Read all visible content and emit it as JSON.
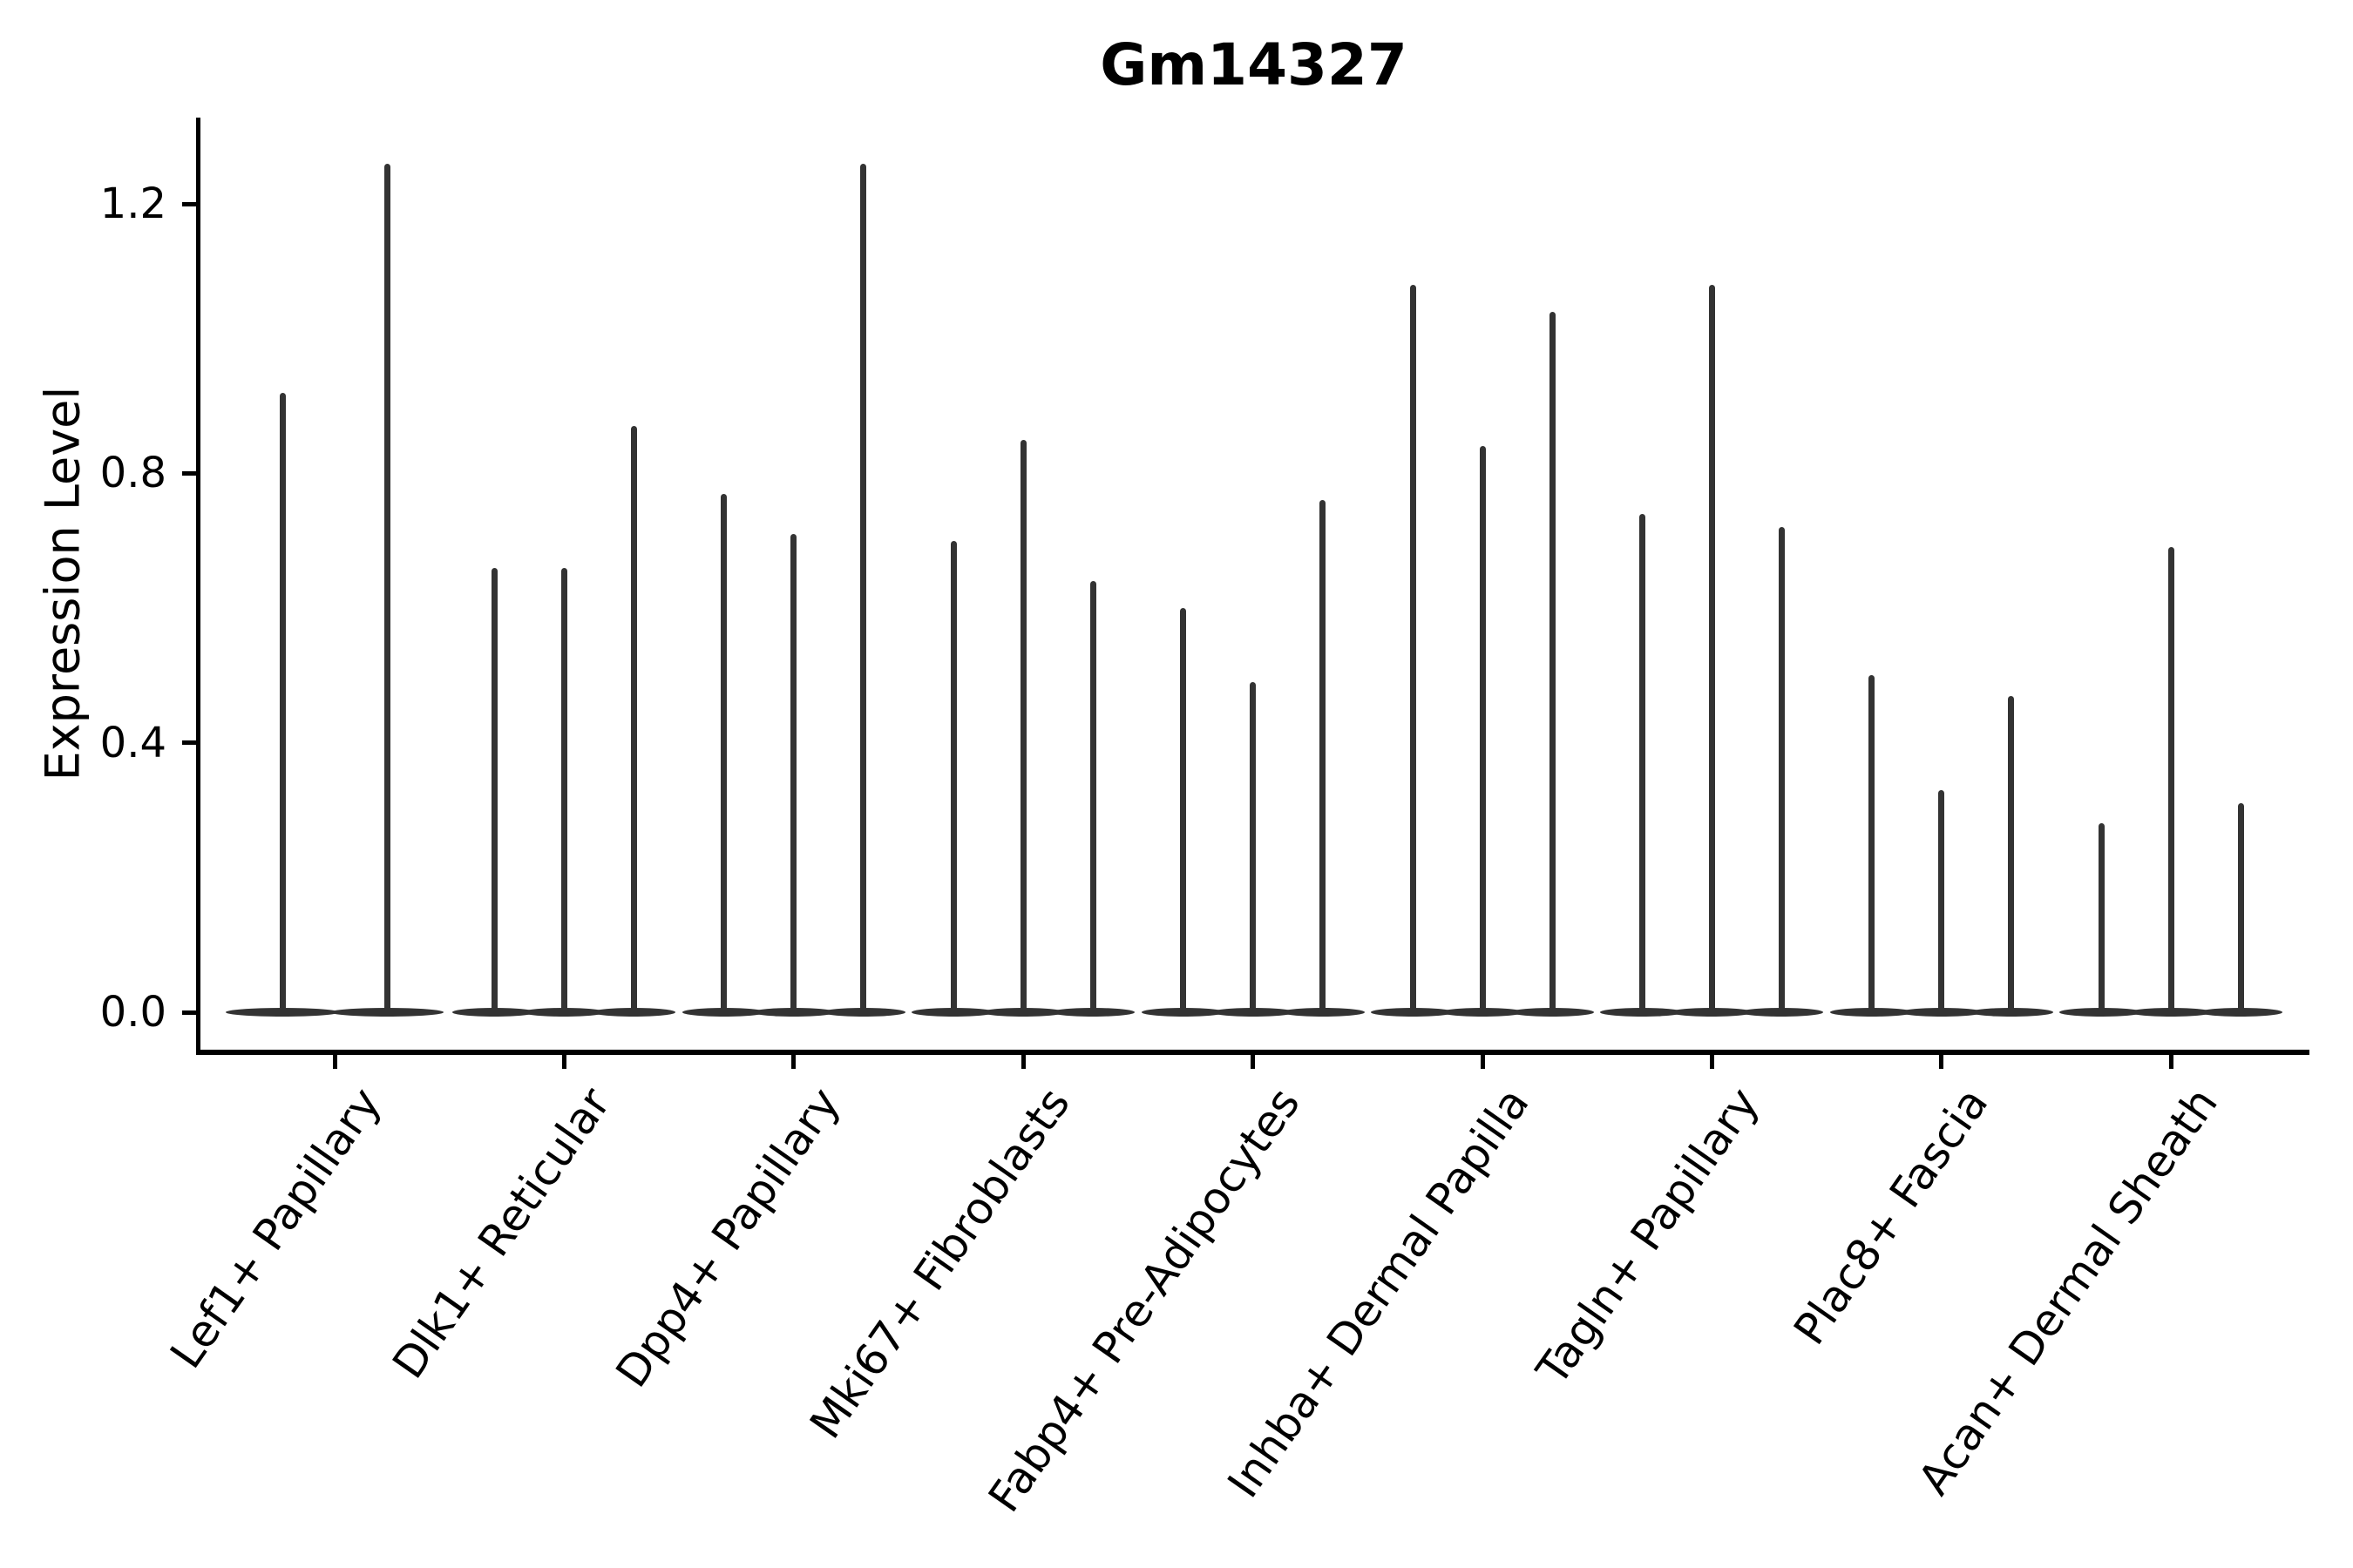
{
  "title": "Gm14327",
  "chart_data": {
    "type": "violin",
    "title": "Gm14327",
    "xlabel": "",
    "ylabel": "Expression Level",
    "ytick_labels": [
      "0.0",
      "0.4",
      "0.8",
      "1.2"
    ],
    "ytick_values": [
      0.0,
      0.4,
      0.8,
      1.2
    ],
    "ylim": [
      -0.06,
      1.33
    ],
    "grid": "off",
    "legend": "none",
    "background_color": "#ffffff",
    "violin_fill_color": "#333333",
    "axis_color": "#000000",
    "distribution_shape": "bulk of density flat at 0 with a thin spike tail up to max expression",
    "categories": [
      "Lef1+ Papillary",
      "Dlk1+ Reticular",
      "Dpp4+ Papillary",
      "Mki67+ Fibroblasts",
      "Fabp4+ Pre-Adipocytes",
      "Inhba+ Dermal Papilla",
      "Tagln+ Papillary",
      "Plac8+ Fascia",
      "Acan+ Dermal Sheath"
    ],
    "groups": [
      {
        "category": "Lef1+ Papillary",
        "sub_violins": [
          {
            "dx": -60,
            "max_expression": 0.92
          },
          {
            "dx": 60,
            "max_expression": 1.26
          }
        ]
      },
      {
        "category": "Dlk1+ Reticular",
        "sub_violins": [
          {
            "dx": -80,
            "max_expression": 0.66
          },
          {
            "dx": 0,
            "max_expression": 0.66
          },
          {
            "dx": 80,
            "max_expression": 0.87
          }
        ]
      },
      {
        "category": "Dpp4+ Papillary",
        "sub_violins": [
          {
            "dx": -80,
            "max_expression": 0.77
          },
          {
            "dx": 0,
            "max_expression": 0.71
          },
          {
            "dx": 80,
            "max_expression": 1.26
          }
        ]
      },
      {
        "category": "Mki67+ Fibroblasts",
        "sub_violins": [
          {
            "dx": -80,
            "max_expression": 0.7
          },
          {
            "dx": 0,
            "max_expression": 0.85
          },
          {
            "dx": 80,
            "max_expression": 0.64
          }
        ]
      },
      {
        "category": "Fabp4+ Pre-Adipocytes",
        "sub_violins": [
          {
            "dx": -80,
            "max_expression": 0.6
          },
          {
            "dx": 0,
            "max_expression": 0.49
          },
          {
            "dx": 80,
            "max_expression": 0.76
          }
        ]
      },
      {
        "category": "Inhba+ Dermal Papilla",
        "sub_violins": [
          {
            "dx": -80,
            "max_expression": 1.08
          },
          {
            "dx": 0,
            "max_expression": 0.84
          },
          {
            "dx": 80,
            "max_expression": 1.04
          }
        ]
      },
      {
        "category": "Tagln+ Papillary",
        "sub_violins": [
          {
            "dx": -80,
            "max_expression": 0.74
          },
          {
            "dx": 0,
            "max_expression": 1.08
          },
          {
            "dx": 80,
            "max_expression": 0.72
          }
        ]
      },
      {
        "category": "Plac8+ Fascia",
        "sub_violins": [
          {
            "dx": -80,
            "max_expression": 0.5
          },
          {
            "dx": 0,
            "max_expression": 0.33
          },
          {
            "dx": 80,
            "max_expression": 0.47
          }
        ]
      },
      {
        "category": "Acan+ Dermal Sheath",
        "sub_violins": [
          {
            "dx": -80,
            "max_expression": 0.28
          },
          {
            "dx": 0,
            "max_expression": 0.69
          },
          {
            "dx": 80,
            "max_expression": 0.31
          }
        ]
      }
    ]
  }
}
